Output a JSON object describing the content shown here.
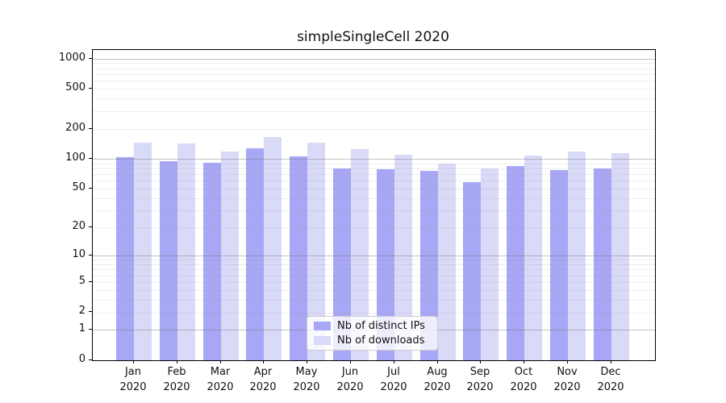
{
  "title": "simpleSingleCell 2020",
  "chart_data": {
    "type": "bar",
    "title": "simpleSingleCell 2020",
    "categories": [
      "Jan",
      "Feb",
      "Mar",
      "Apr",
      "May",
      "Jun",
      "Jul",
      "Aug",
      "Sep",
      "Oct",
      "Nov",
      "Dec"
    ],
    "year": "2020",
    "series": [
      {
        "name": "Nb of distinct IPs",
        "color": "#a7a7f5",
        "values": [
          103,
          95,
          91,
          127,
          105,
          80,
          79,
          76,
          58,
          84,
          77,
          80
        ]
      },
      {
        "name": "Nb of downloads",
        "color": "#d9d9f8",
        "values": [
          146,
          143,
          119,
          165,
          146,
          125,
          109,
          90,
          80,
          107,
          118,
          113
        ]
      }
    ],
    "xlabel": "",
    "ylabel": "",
    "yscale": "log1p",
    "yticks": [
      0,
      1,
      2,
      5,
      10,
      20,
      50,
      100,
      200,
      500,
      1000
    ],
    "ylim": [
      0,
      1200
    ],
    "grid": true,
    "legend_position": "lower-center",
    "colors": {
      "major_gridline": "#c8c8c8",
      "minor_gridline": "#ececec",
      "axis": "#000000",
      "text": "#111111"
    }
  }
}
